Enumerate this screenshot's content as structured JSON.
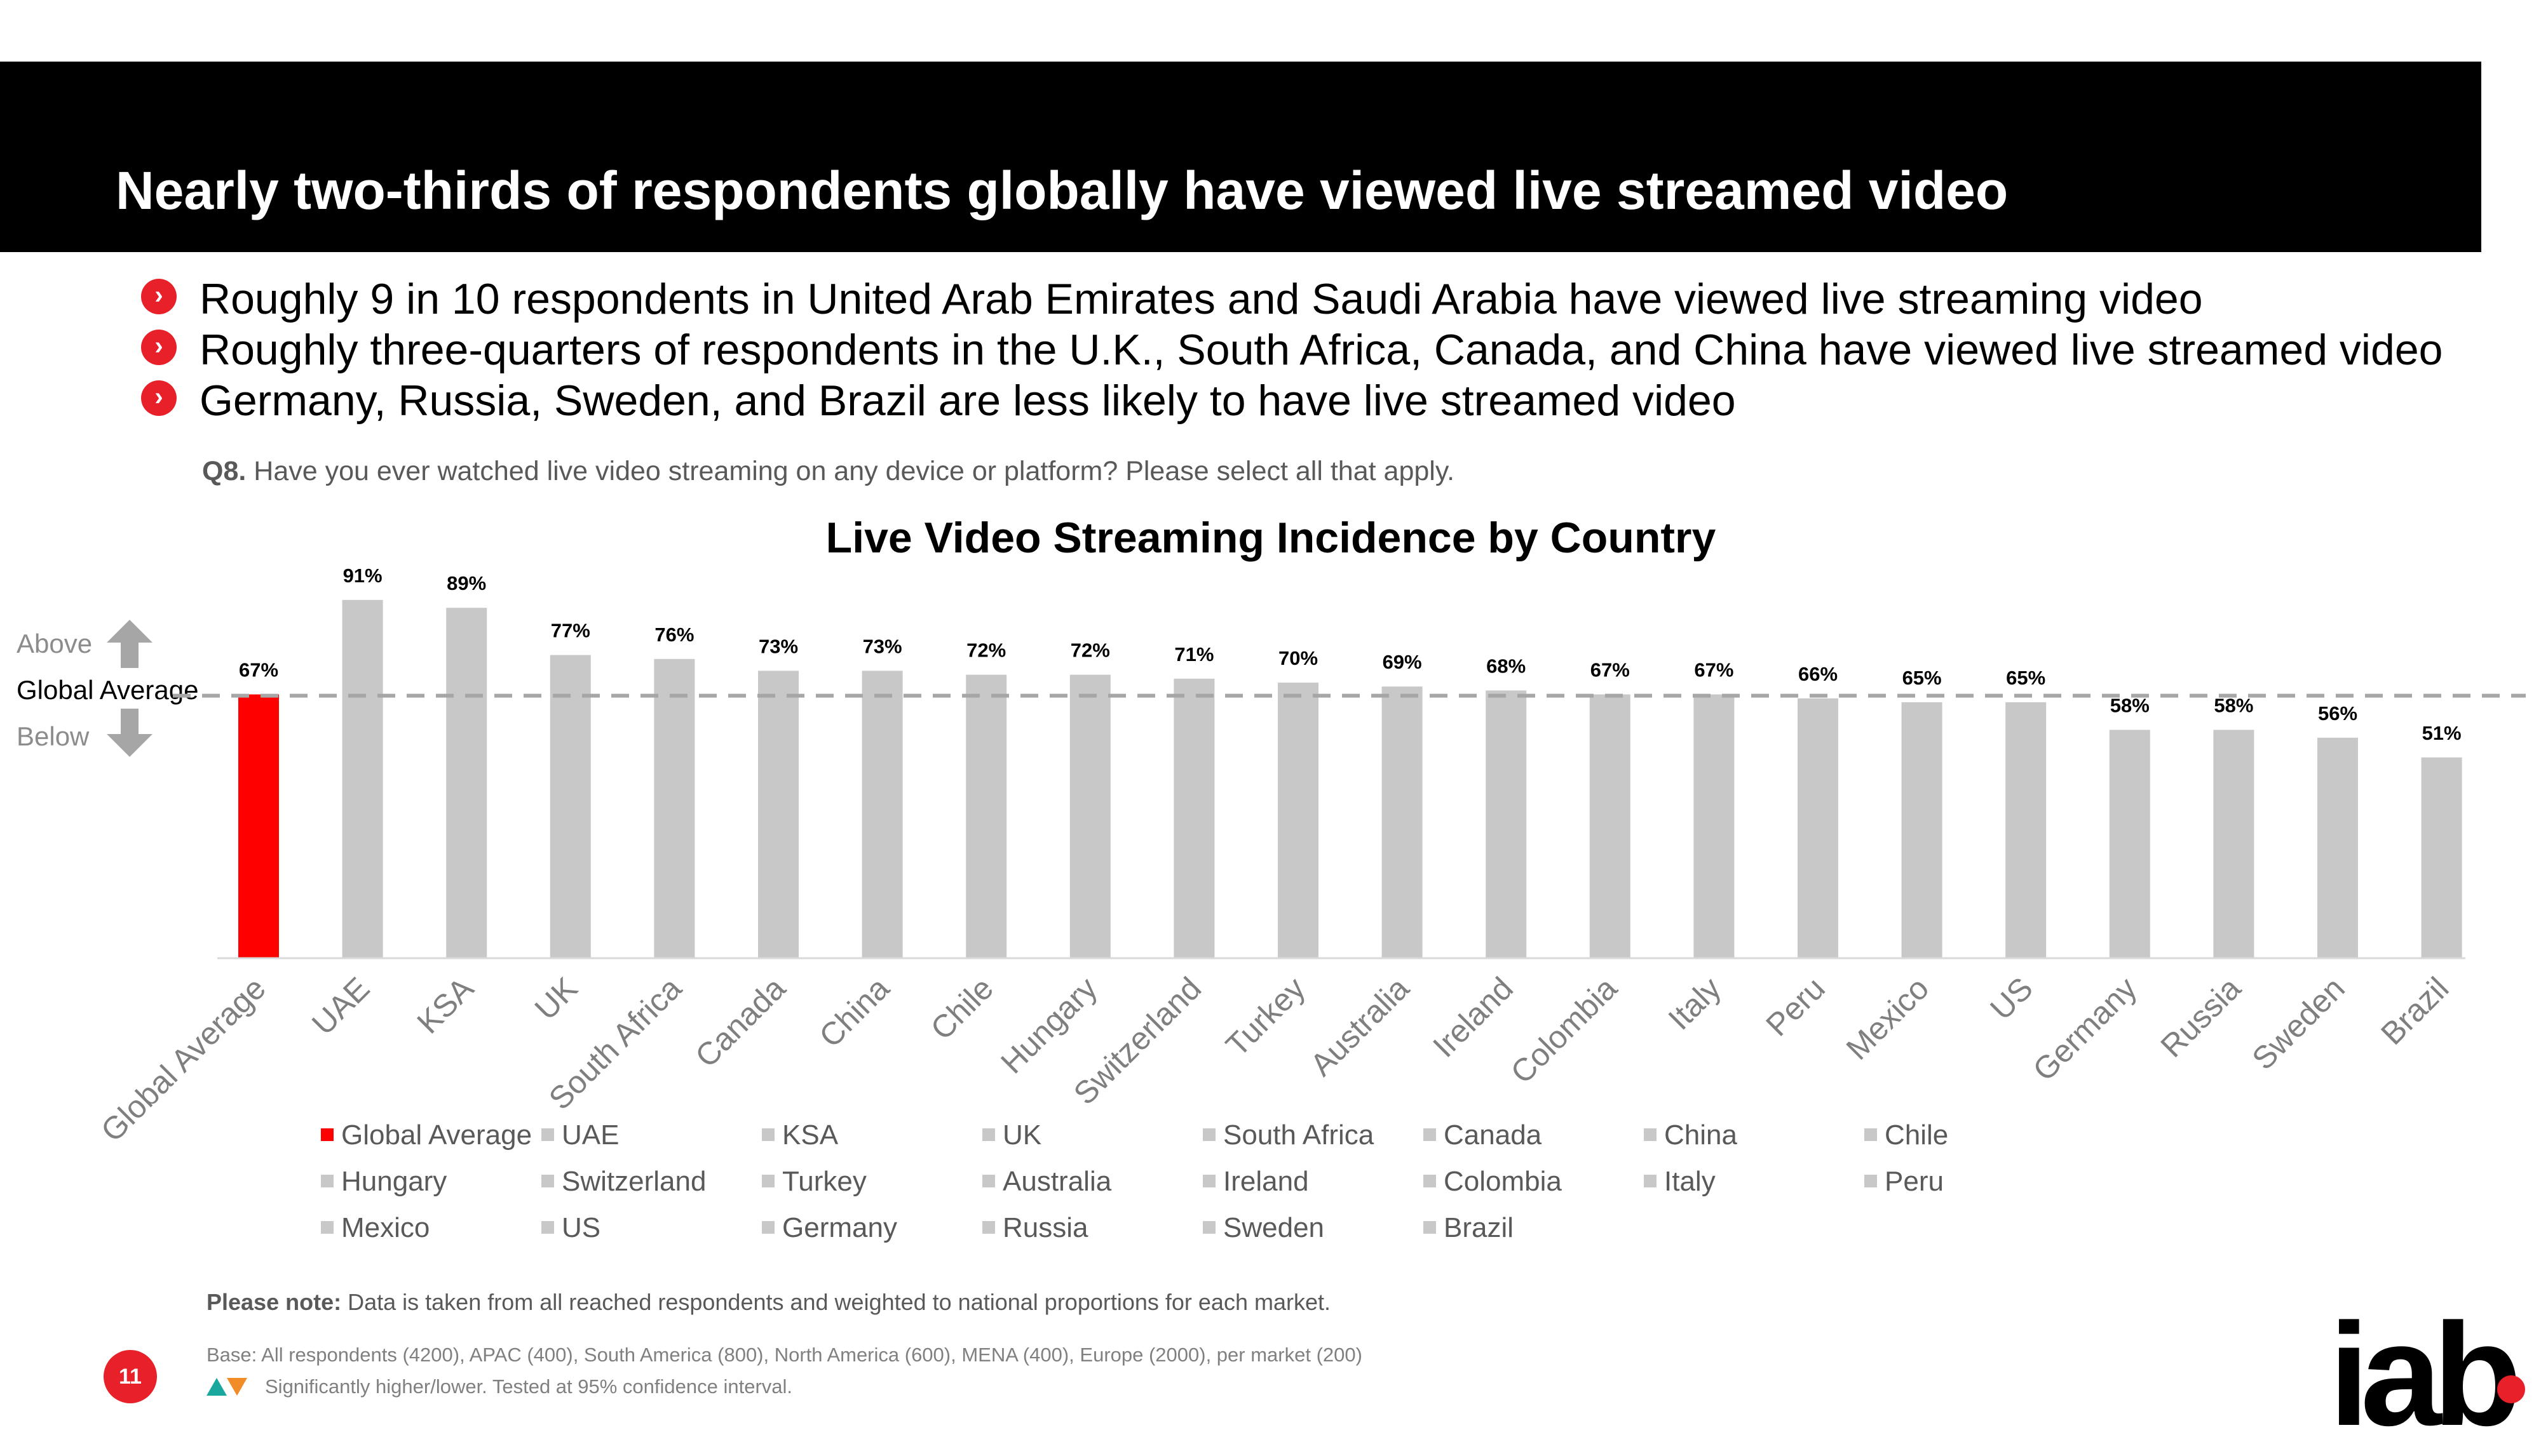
{
  "header": {
    "title": "Nearly two-thirds of respondents globally have viewed live streamed video"
  },
  "bullets": [
    "Roughly 9 in 10 respondents in United Arab Emirates and Saudi Arabia have viewed live streaming video",
    "Roughly three-quarters of respondents in the U.K., South Africa, Canada, and China have viewed live streamed video",
    "Germany, Russia, Sweden, and Brazil are less likely to have live streamed video"
  ],
  "question": {
    "label": "Q8.",
    "text": "Have you ever watched live video streaming on any device or platform? Please select all that apply."
  },
  "side_labels": {
    "above": "Above",
    "average": "Global Average",
    "below": "Below"
  },
  "colors": {
    "highlight": "#ff0000",
    "bar": "#c8c8c8",
    "accent": "#e8202a",
    "reference_line": "#a6a6a6"
  },
  "chart_data": {
    "type": "bar",
    "title": "Live Video Streaming Incidence by Country",
    "categories": [
      "Global Average",
      "UAE",
      "KSA",
      "UK",
      "South Africa",
      "Canada",
      "China",
      "Chile",
      "Hungary",
      "Switzerland",
      "Turkey",
      "Australia",
      "Ireland",
      "Colombia",
      "Italy",
      "Peru",
      "Mexico",
      "US",
      "Germany",
      "Russia",
      "Sweden",
      "Brazil"
    ],
    "values": [
      67,
      91,
      89,
      77,
      76,
      73,
      73,
      72,
      72,
      71,
      70,
      69,
      68,
      67,
      67,
      66,
      65,
      65,
      58,
      58,
      56,
      51
    ],
    "data_labels": [
      "67%",
      "91%",
      "89%",
      "77%",
      "76%",
      "73%",
      "73%",
      "72%",
      "72%",
      "71%",
      "70%",
      "69%",
      "68%",
      "67%",
      "67%",
      "66%",
      "65%",
      "65%",
      "58%",
      "58%",
      "56%",
      "51%"
    ],
    "highlight_category": "Global Average",
    "reference_line": {
      "label": "Global Average",
      "value": 67
    },
    "ylim": [
      0,
      100
    ],
    "xlabel": "",
    "ylabel": "",
    "grid": false,
    "legend_position": "bottom",
    "legend": [
      "Global Average",
      "UAE",
      "KSA",
      "UK",
      "South Africa",
      "Canada",
      "China",
      "Chile",
      "Hungary",
      "Switzerland",
      "Turkey",
      "Australia",
      "Ireland",
      "Colombia",
      "Italy",
      "Peru",
      "Mexico",
      "US",
      "Germany",
      "Russia",
      "Sweden",
      "Brazil"
    ]
  },
  "footer": {
    "note_label": "Please note:",
    "note_text": "Data is taken from all reached respondents and weighted to national proportions for each market.",
    "base": "Base: All respondents (4200), APAC (400), South America (800), North America (600), MENA (400), Europe (2000), per market (200)",
    "significance": "Significantly higher/lower. Tested at 95% confidence interval.",
    "page_number": "11",
    "logo_text": "iab"
  }
}
